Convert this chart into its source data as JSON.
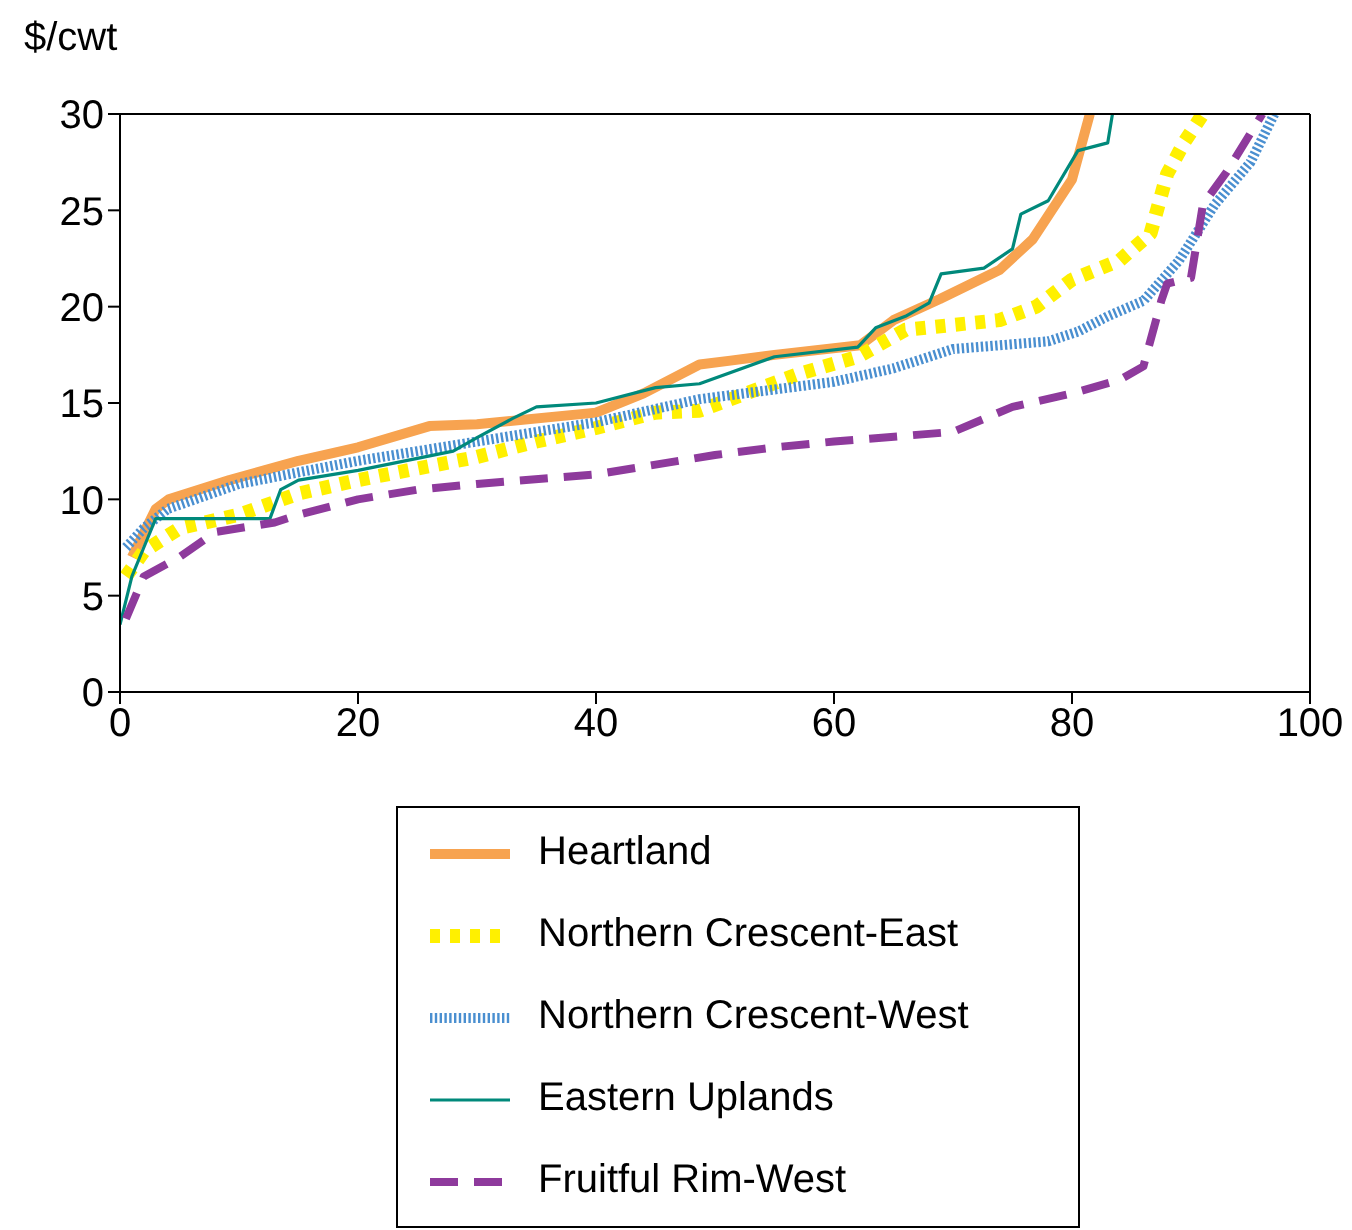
{
  "chart_data": {
    "type": "line",
    "ylabel": "$/cwt",
    "xlim": [
      0,
      100
    ],
    "xticks": [
      0,
      20,
      40,
      60,
      80,
      100
    ],
    "ylim": [
      0,
      30
    ],
    "yticks": [
      0,
      5,
      10,
      15,
      20,
      25,
      30
    ],
    "legend": "bottom",
    "marker": "none",
    "series": [
      {
        "name": "Heartland",
        "color": "#f7a350",
        "line_style": "solid",
        "x": [
          1,
          3,
          4.1,
          9.2,
          15,
          20,
          26,
          30,
          40,
          44,
          48.7,
          51.3,
          55,
          62.2,
          65,
          68.9,
          73.9,
          76.7,
          80,
          81.5
        ],
        "values": [
          7,
          9.5,
          10,
          11,
          12,
          12.7,
          13.8,
          13.9,
          14.5,
          15.5,
          17,
          17.2,
          17.5,
          18,
          19.3,
          20.4,
          21.9,
          23.5,
          26.6,
          30
        ]
      },
      {
        "name": "Northern Crescent-East",
        "color": "#fff000",
        "line_style": "dotted",
        "x": [
          0.5,
          2,
          5,
          10,
          15,
          20,
          25,
          30,
          35,
          40,
          45,
          48.7,
          57,
          62,
          66,
          73.9,
          77,
          80,
          84,
          86.6,
          88,
          89.5,
          91
        ],
        "values": [
          6,
          7.3,
          8.5,
          9.2,
          10.3,
          11,
          11.6,
          12.2,
          13,
          13.7,
          14.5,
          14.6,
          16.5,
          17.4,
          18.8,
          19.3,
          20,
          21.4,
          22.4,
          23.8,
          26.9,
          28.6,
          30
        ]
      },
      {
        "name": "Northern Crescent-West",
        "color": "#4a8fd0",
        "line_style": "dotted",
        "x": [
          0.5,
          2,
          4,
          10,
          20,
          30,
          40,
          48.7,
          60,
          65,
          70,
          78,
          80.5,
          83,
          86,
          89,
          92,
          95,
          97
        ],
        "values": [
          7.5,
          8.5,
          9.5,
          10.8,
          12,
          13,
          14,
          15.2,
          16.1,
          16.8,
          17.8,
          18.2,
          18.7,
          19.5,
          20.3,
          22.4,
          25.3,
          27.5,
          30
        ]
      },
      {
        "name": "Eastern Uplands",
        "color": "#00897b",
        "line_style": "solid",
        "x": [
          0,
          1,
          2,
          3,
          12.6,
          13.5,
          15,
          20,
          28,
          30,
          33,
          35,
          40,
          45,
          48.7,
          55,
          62,
          63.5,
          66,
          68,
          69,
          72.6,
          75,
          75.7,
          78,
          80.5,
          83,
          83.4
        ],
        "values": [
          3.5,
          6,
          7.5,
          9,
          9,
          10.5,
          11,
          11.5,
          12.5,
          13.2,
          14.2,
          14.8,
          15,
          15.8,
          16,
          17.4,
          17.9,
          18.9,
          19.5,
          20.2,
          21.7,
          22,
          23,
          24.8,
          25.5,
          28.1,
          28.5,
          30
        ]
      },
      {
        "name": "Fruitful Rim-West",
        "color": "#8e3a9c",
        "line_style": "dashed",
        "x": [
          0.5,
          2,
          5,
          8,
          13,
          15,
          20,
          25,
          30,
          40,
          50,
          55,
          60,
          64,
          70,
          75,
          80,
          84,
          86,
          87.5,
          88,
          90,
          91,
          93,
          96
        ],
        "values": [
          3.8,
          6,
          7,
          8.3,
          8.8,
          9.2,
          10,
          10.5,
          10.8,
          11.3,
          12.3,
          12.7,
          13,
          13.2,
          13.5,
          14.8,
          15.5,
          16.2,
          16.9,
          20.3,
          21.2,
          21.5,
          25.3,
          27,
          30
        ]
      }
    ]
  }
}
